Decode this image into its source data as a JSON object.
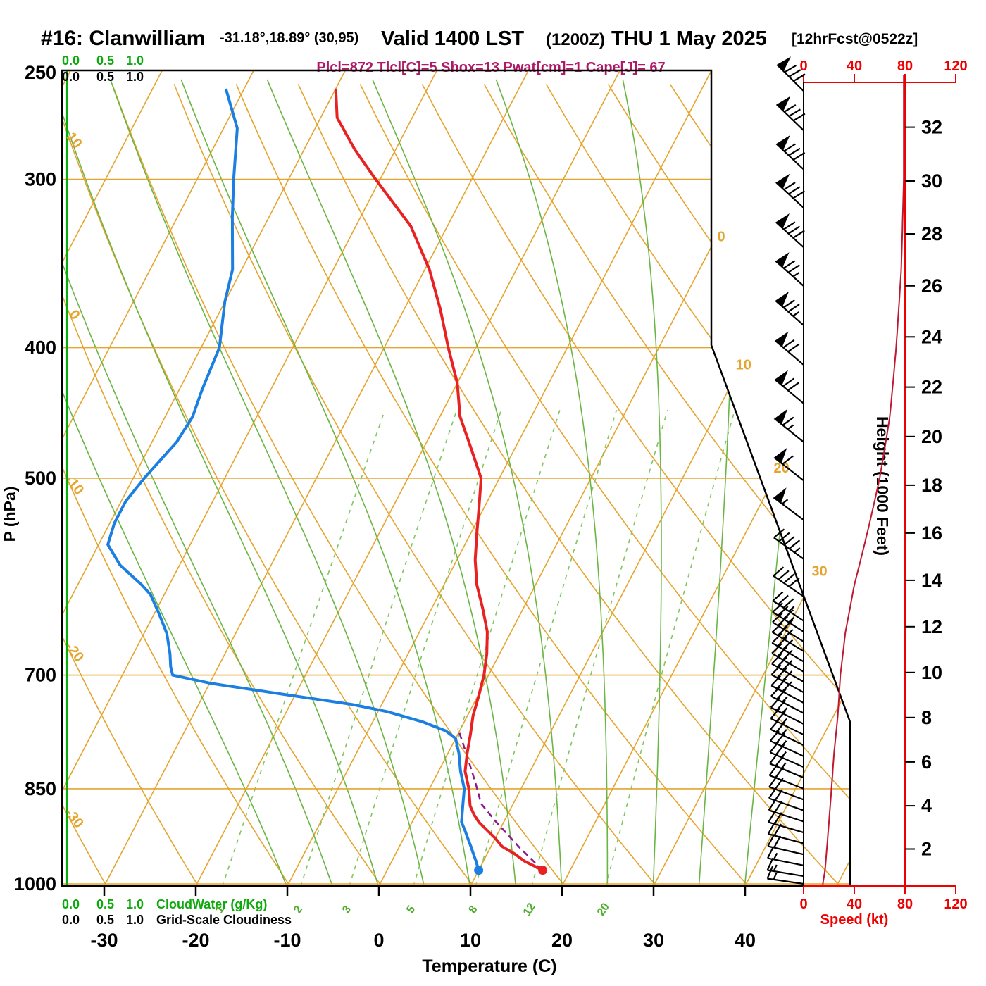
{
  "header": {
    "station": "#16: Clanwilliam",
    "coords": "-31.18°,18.89° (30,95)",
    "valid": "Valid 1400 LST",
    "valid_z": "(1200Z)",
    "valid_date": "THU 1 May 2025",
    "fcst": "[12hrFcst@0522z]",
    "stats": "Plcl=872 Tlcl[C]=5 Shox=13 Pwat[cm]=1 Cape[J]= 67"
  },
  "axes": {
    "pressure_label": "P (hPa)",
    "temp_label": "Temperature (C)",
    "height_label": "Height (1000 Feet)",
    "speed_label": "Speed (kt)"
  },
  "legend": {
    "cloudwater": "CloudWater (g/Kg)",
    "cloudiness": "Grid-Scale Cloudiness",
    "scale": [
      "0.0",
      "0.5",
      "1.0"
    ]
  },
  "colors": {
    "isotherm": "#e5a42e",
    "dry_adiabat": "#e5a42e",
    "moist_adiabat": "#6ab544",
    "mixing_ratio": "#7fc65c",
    "mixing_label": "#4fae2e",
    "temperature": "#e82222",
    "dewpoint": "#1a7fe0",
    "parcel": "#8a1a8a",
    "speed_axis": "#ee0000",
    "speed_curve": "#c01830",
    "cloudwater": "#0caa0c",
    "indices_text": "#b01868",
    "barbs": "#000000"
  },
  "chart_data": {
    "type": "skewt_log_p_sounding",
    "station": "#16: Clanwilliam",
    "valid": "1400 LST (1200Z) THU 1 May 2025, 12hrFcst@0522z",
    "pressure_ticks_hpa": [
      250,
      300,
      400,
      500,
      700,
      850,
      1000
    ],
    "temp_ticks_c": [
      -30,
      -20,
      -10,
      0,
      10,
      20,
      30,
      40
    ],
    "height_ticks_kft": [
      2,
      4,
      6,
      8,
      10,
      12,
      14,
      16,
      18,
      20,
      22,
      24,
      26,
      28,
      30,
      32
    ],
    "speed_ticks_kt": [
      0,
      40,
      80,
      120
    ],
    "dry_adiabat_labels_c": [
      10,
      0,
      -10,
      -20,
      -30
    ],
    "isotherm_labels_right_c": [
      0,
      10,
      20,
      30
    ],
    "mixing_ratio_lines_gkg": [
      1,
      2,
      3,
      5,
      8,
      12,
      20
    ],
    "indices": {
      "plcl_hpa": 872,
      "tlcl_c": 5,
      "showalter": 13,
      "pwat_cm": 1,
      "cape_j": 67
    },
    "surface": {
      "pressure_hpa": 977,
      "temp_c": 17,
      "dewpoint_c": 10
    },
    "temperature_curve": [
      [
        977,
        17
      ],
      [
        962,
        14.5
      ],
      [
        950,
        13
      ],
      [
        938,
        11.2
      ],
      [
        925,
        10
      ],
      [
        912,
        8.6
      ],
      [
        900,
        7.3
      ],
      [
        888,
        6.3
      ],
      [
        875,
        5.4
      ],
      [
        850,
        4.3
      ],
      [
        825,
        2.9
      ],
      [
        800,
        2.1
      ],
      [
        775,
        1.4
      ],
      [
        750,
        0.6
      ],
      [
        725,
        0.1
      ],
      [
        700,
        -0.5
      ],
      [
        675,
        -1.4
      ],
      [
        650,
        -2.6
      ],
      [
        625,
        -4.4
      ],
      [
        600,
        -6.4
      ],
      [
        575,
        -8
      ],
      [
        550,
        -9.3
      ],
      [
        525,
        -10.6
      ],
      [
        500,
        -12
      ],
      [
        475,
        -14.8
      ],
      [
        450,
        -17.8
      ],
      [
        425,
        -20
      ],
      [
        400,
        -23
      ],
      [
        375,
        -26
      ],
      [
        350,
        -29.5
      ],
      [
        325,
        -34
      ],
      [
        300,
        -40.5
      ],
      [
        285,
        -44.5
      ],
      [
        270,
        -48.2
      ],
      [
        257,
        -50
      ]
    ],
    "dewpoint_curve": [
      [
        977,
        10
      ],
      [
        962,
        9.2
      ],
      [
        950,
        8.5
      ],
      [
        938,
        7.8
      ],
      [
        925,
        7
      ],
      [
        912,
        6.2
      ],
      [
        900,
        5.4
      ],
      [
        875,
        4.6
      ],
      [
        850,
        3.8
      ],
      [
        825,
        2.4
      ],
      [
        800,
        1.2
      ],
      [
        780,
        0
      ],
      [
        770,
        -1.5
      ],
      [
        758,
        -4.6
      ],
      [
        745,
        -9
      ],
      [
        736,
        -13.2
      ],
      [
        723,
        -21.5
      ],
      [
        710,
        -29.8
      ],
      [
        700,
        -34.5
      ],
      [
        690,
        -35.2
      ],
      [
        675,
        -36
      ],
      [
        652,
        -37.5
      ],
      [
        630,
        -39.5
      ],
      [
        610,
        -41.5
      ],
      [
        600,
        -43
      ],
      [
        580,
        -46.5
      ],
      [
        560,
        -49
      ],
      [
        540,
        -49.5
      ],
      [
        520,
        -49.5
      ],
      [
        500,
        -48.8
      ],
      [
        470,
        -47.3
      ],
      [
        450,
        -47
      ],
      [
        430,
        -47.5
      ],
      [
        400,
        -48
      ],
      [
        370,
        -50
      ],
      [
        350,
        -51
      ],
      [
        320,
        -54
      ],
      [
        300,
        -56
      ],
      [
        275,
        -58.5
      ],
      [
        257,
        -62
      ]
    ],
    "parcel_curve": [
      [
        977,
        17
      ],
      [
        940,
        13.2
      ],
      [
        900,
        9.2
      ],
      [
        872,
        6.5
      ],
      [
        840,
        4.6
      ],
      [
        800,
        2
      ],
      [
        767,
        -0.3
      ]
    ],
    "moist_adiabat_start_c": [
      -10,
      -5,
      0,
      5,
      10,
      15,
      20,
      25,
      30,
      35,
      40
    ],
    "wind_barb_levels_hpa": [
      258,
      276,
      295,
      315,
      337,
      360,
      385,
      412,
      440,
      470,
      502,
      537,
      574,
      612,
      638,
      650,
      661,
      672,
      684,
      696,
      708,
      721,
      734,
      747,
      761,
      775,
      789,
      804,
      819,
      834,
      850,
      866,
      882,
      899,
      916,
      933,
      951,
      969,
      987,
      1000
    ],
    "wind_speed_profile_kt": [
      [
        1003,
        15
      ],
      [
        975,
        17
      ],
      [
        950,
        18
      ],
      [
        925,
        19
      ],
      [
        900,
        20
      ],
      [
        850,
        22
      ],
      [
        800,
        24
      ],
      [
        750,
        27
      ],
      [
        700,
        29
      ],
      [
        650,
        33
      ],
      [
        600,
        40
      ],
      [
        550,
        50
      ],
      [
        500,
        60
      ],
      [
        450,
        68
      ],
      [
        400,
        73
      ],
      [
        350,
        77
      ],
      [
        300,
        79
      ],
      [
        250,
        79
      ]
    ],
    "wind_dir_profile_deg": [
      [
        1003,
        278
      ],
      [
        900,
        288
      ],
      [
        800,
        295
      ],
      [
        700,
        300
      ],
      [
        600,
        305
      ],
      [
        500,
        308
      ],
      [
        400,
        311
      ],
      [
        300,
        313
      ],
      [
        250,
        315
      ]
    ],
    "cloudwater_profile_gkg": 0,
    "grid_scale_cloudiness": 0
  }
}
